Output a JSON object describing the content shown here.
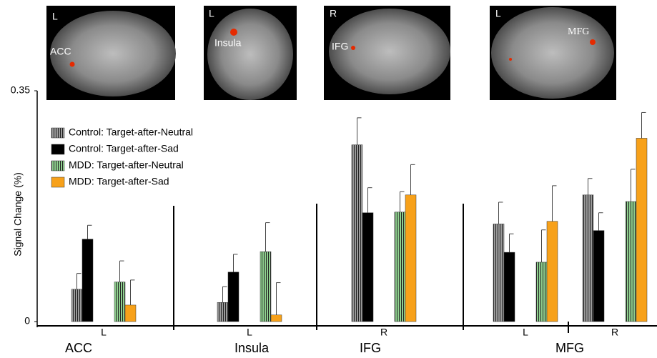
{
  "chart_data": {
    "type": "bar",
    "ylabel": "Signal Change (%)",
    "ylim": [
      0,
      0.35
    ],
    "yticks": [
      0,
      0.35
    ],
    "categories": [
      "L",
      "L",
      "R",
      "L",
      "R"
    ],
    "groups": [
      "ACC",
      "Insula",
      "IFG",
      "MFG"
    ],
    "images": [
      {
        "side": "L",
        "label": "ACC"
      },
      {
        "side": "L",
        "label": "Insula"
      },
      {
        "side": "R",
        "label": "IFG"
      },
      {
        "side": "L",
        "label": "MFG"
      }
    ],
    "series": [
      {
        "name": "Control: Target-after-Neutral",
        "color": "#9a9a9a",
        "hatch": true,
        "values": [
          0.049,
          0.029,
          0.268,
          0.148,
          0.192
        ],
        "errors": [
          0.024,
          0.024,
          0.041,
          0.033,
          0.025
        ]
      },
      {
        "name": "Control: Target-after-Sad",
        "color": "#000000",
        "hatch": false,
        "values": [
          0.125,
          0.075,
          0.165,
          0.105,
          0.138
        ],
        "errors": [
          0.021,
          0.027,
          0.038,
          0.028,
          0.027
        ]
      },
      {
        "name": "MDD: Target-after-Neutral",
        "color": "#8fd18f",
        "hatch": true,
        "values": [
          0.06,
          0.106,
          0.166,
          0.09,
          0.182
        ],
        "errors": [
          0.032,
          0.044,
          0.031,
          0.049,
          0.049
        ]
      },
      {
        "name": "MDD: Target-after-Sad",
        "color": "#f7a11a",
        "hatch": false,
        "values": [
          0.025,
          0.01,
          0.192,
          0.152,
          0.278
        ],
        "errors": [
          0.038,
          0.049,
          0.046,
          0.054,
          0.039
        ]
      }
    ]
  }
}
